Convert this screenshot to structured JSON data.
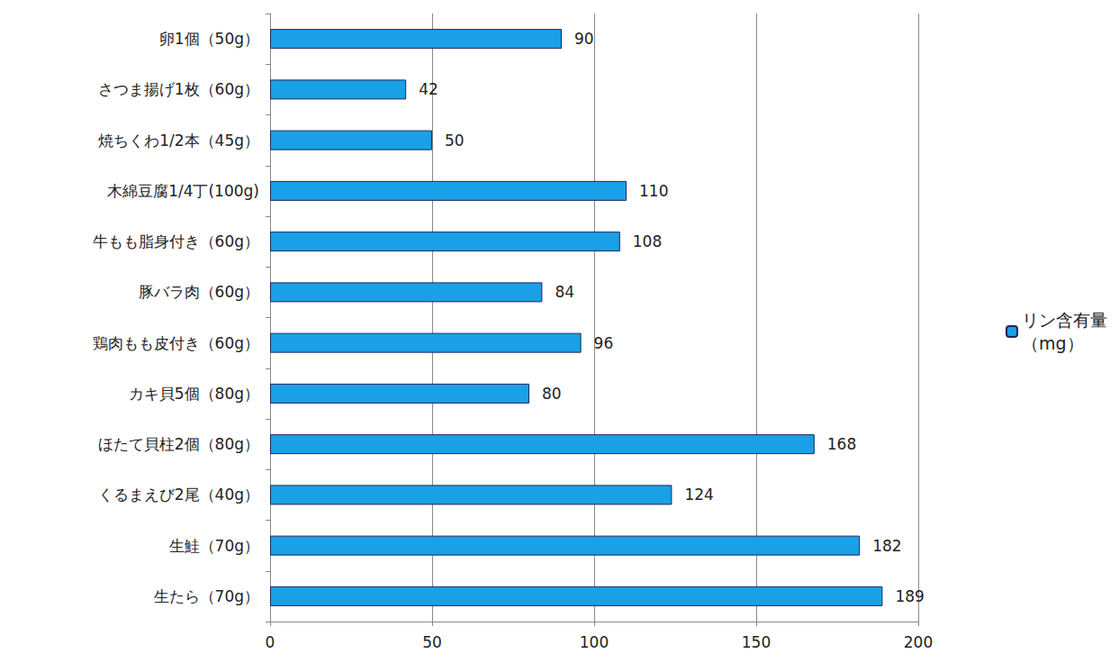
{
  "chart_data": {
    "type": "bar",
    "orientation": "horizontal",
    "categories": [
      "卵1個（50g）",
      "さつま揚げ1枚（60g）",
      "焼ちくわ1/2本（45g）",
      "木綿豆腐1/4丁(100g)",
      "牛もも脂身付き（60g）",
      "豚バラ肉（60g）",
      "鶏肉もも皮付き（60g）",
      "カキ貝5個（80g）",
      "ほたて貝柱2個（80g）",
      "くるまえび2尾（40g）",
      "生鮭（70g）",
      "生たら（70g）"
    ],
    "series": [
      {
        "name": "リン含有量（mg）",
        "color": "#1aa0e6",
        "values": [
          90,
          42,
          50,
          110,
          108,
          84,
          96,
          80,
          168,
          124,
          182,
          189
        ]
      }
    ],
    "xlim": [
      0,
      200
    ],
    "xticks": [
      0,
      50,
      100,
      150,
      200
    ],
    "grid": true,
    "legend": "right",
    "data_labels": true
  }
}
